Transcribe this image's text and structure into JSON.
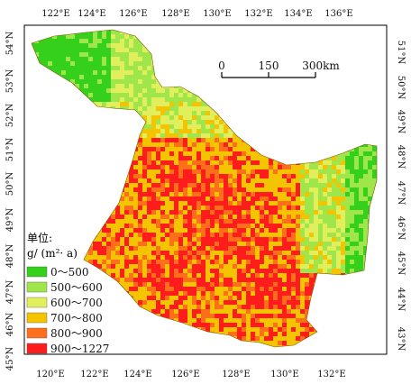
{
  "top_lon_ticks": [
    "122°E",
    "124°E",
    "126°E",
    "128°E",
    "130°E",
    "132°E",
    "134°E",
    "136°E"
  ],
  "bottom_lon_ticks": [
    "120°E",
    "122°E",
    "124°E",
    "126°E",
    "128°E",
    "130°E",
    "132°E"
  ],
  "left_lat_ticks": [
    "54°N",
    "53°N",
    "52°N",
    "51°N",
    "50°N",
    "49°N",
    "48°N",
    "47°N",
    "46°N",
    "45°N"
  ],
  "right_lat_ticks": [
    "51°N",
    "50°N",
    "49°N",
    "48°N",
    "47°N",
    "46°N",
    "45°N",
    "44°N",
    "43°N"
  ],
  "scale": {
    "labels": [
      "0",
      "150",
      "300km"
    ]
  },
  "legend": {
    "title_line1": "单位:",
    "title_line2": "g/ (m²· a)",
    "items": [
      {
        "label": "0～500",
        "color": "#34d01c"
      },
      {
        "label": "500～600",
        "color": "#9ee64a"
      },
      {
        "label": "600～700",
        "color": "#e2ef5c"
      },
      {
        "label": "700～800",
        "color": "#f5c400"
      },
      {
        "label": "800～900",
        "color": "#ff6e1a"
      },
      {
        "label": "900～1227",
        "color": "#ff1c1c"
      }
    ]
  }
}
